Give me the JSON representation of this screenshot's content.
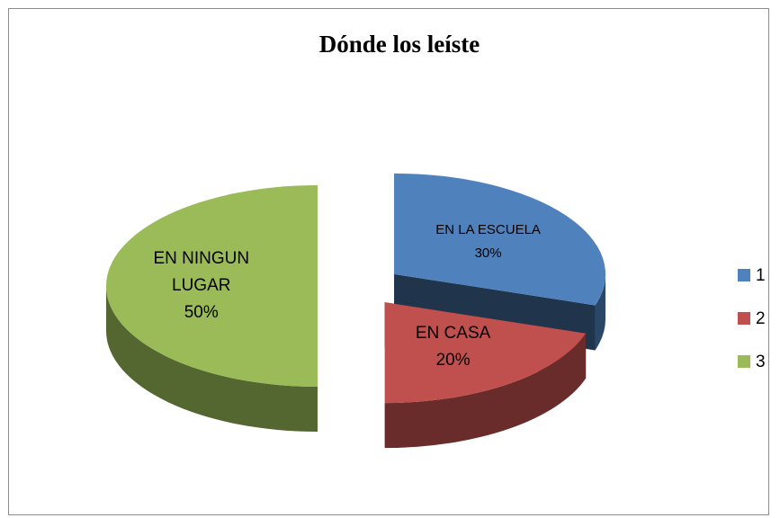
{
  "chart_data": {
    "type": "pie",
    "title": "Dónde los leíste",
    "categories": [
      "1",
      "2",
      "3"
    ],
    "slice_labels": [
      "EN LA ESCUELA",
      "EN CASA",
      "EN NINGUN LUGAR"
    ],
    "values": [
      30,
      20,
      50
    ],
    "value_labels": [
      "30%",
      "20%",
      "50%"
    ],
    "colors": [
      "#4f81bd",
      "#c0504d",
      "#9bbb59"
    ],
    "legend": "right"
  }
}
